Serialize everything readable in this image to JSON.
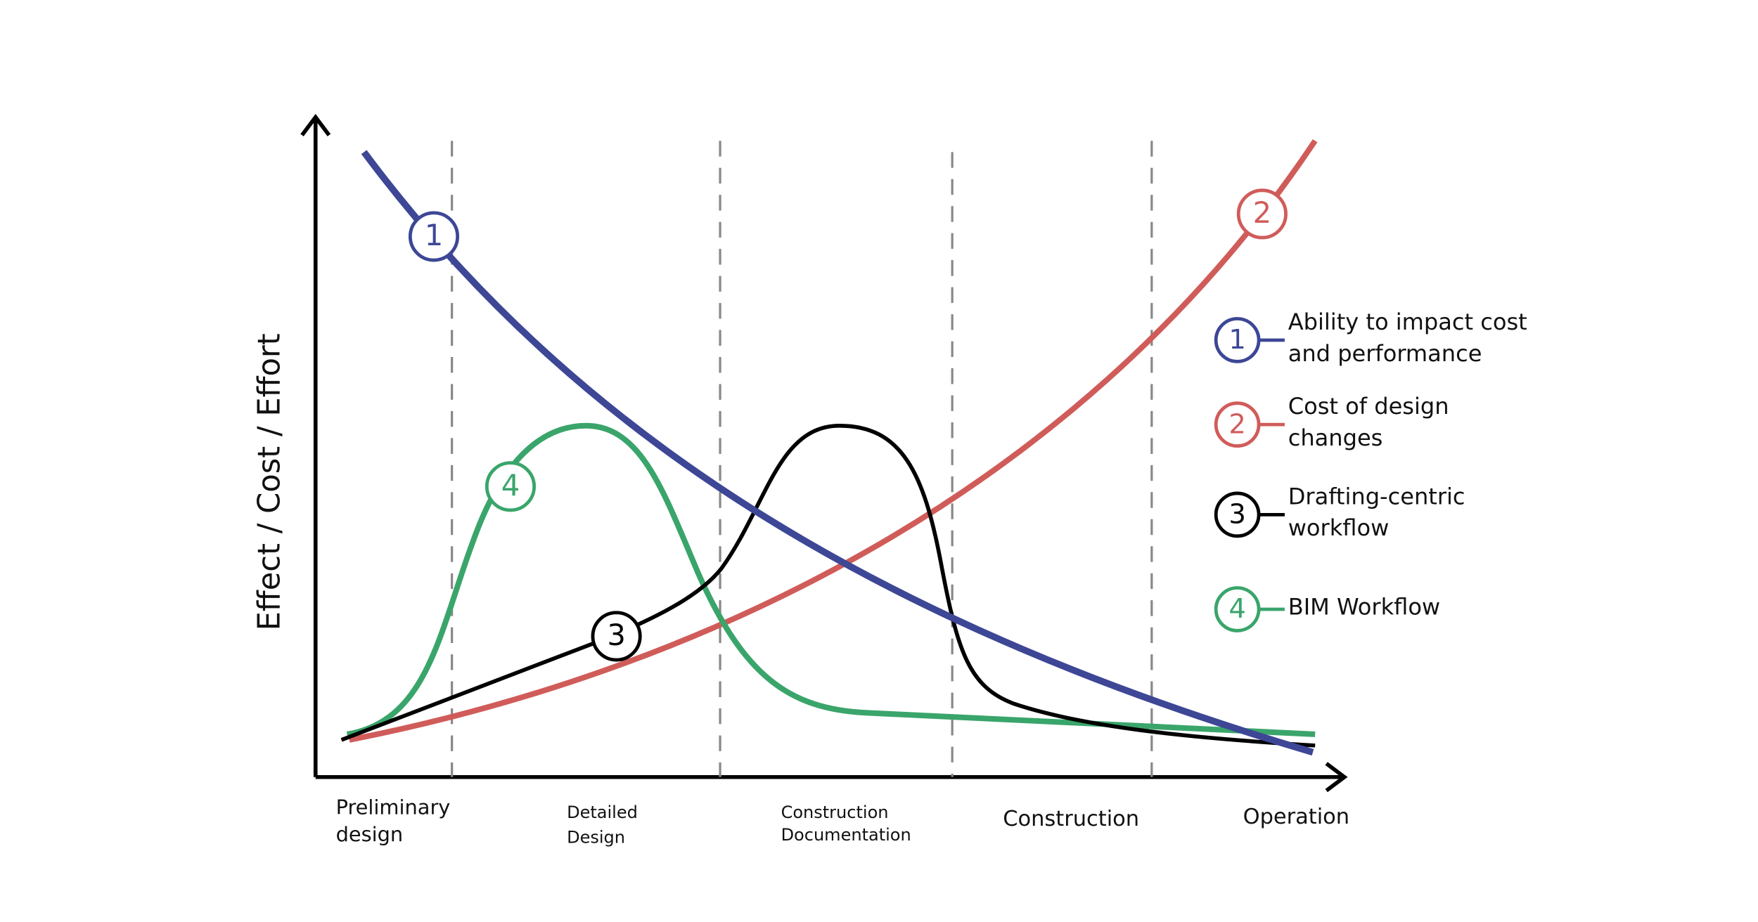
{
  "y_axis_label": "Effect / Cost / Effort",
  "phases": [
    [
      "Preliminary",
      "design"
    ],
    [
      "Detailed",
      "Design"
    ],
    [
      "Construction",
      "Documentation"
    ],
    [
      "Construction"
    ],
    [
      "Operation"
    ]
  ],
  "curves": [
    {
      "number": "1",
      "label": [
        "Ability to impact cost",
        "and performance"
      ],
      "color": "#3d4796"
    },
    {
      "number": "2",
      "label": [
        "Cost of design",
        "changes"
      ],
      "color": "#d05c5a"
    },
    {
      "number": "3",
      "label": [
        "Drafting-centric",
        "workflow"
      ],
      "color": "#000000"
    },
    {
      "number": "4",
      "label": [
        "BIM Workflow"
      ],
      "color": "#3aa56b"
    }
  ]
}
